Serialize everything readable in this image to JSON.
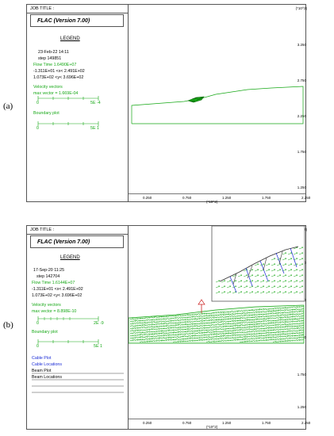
{
  "panel_a": {
    "label": "(a)",
    "job_title": "JOB TITLE :",
    "app_title": "FLAC (Version 7.00)",
    "legend_title": "LEGEND",
    "date": "23-Feb-22  14:11",
    "step": "step   149851",
    "flow_time": "Flow Time    1.6490E+07",
    "x_range": "-1.311E+01 <x<  2.491E+02",
    "y_range": "1.073E+02 <y<  3.696E+02",
    "velocity_label": "Velocity vectors",
    "max_vector": "max vector =    1.669E-04",
    "vel_scale_0": "0",
    "vel_scale_max": "5E -4",
    "boundary_label": "Boundary plot",
    "bnd_scale_0": "0",
    "bnd_scale_max": "5E  1",
    "y_units": "(*10^2)",
    "x_units": "(*10^2)",
    "y_ticks": [
      "3.250",
      "2.750",
      "2.250",
      "1.750",
      "1.250"
    ],
    "x_ticks": [
      "0.250",
      "0.750",
      "1.250",
      "1.750",
      "2.250"
    ]
  },
  "panel_b": {
    "label": "(b)",
    "job_title": "JOB TITLE :",
    "app_title": "FLAC (Version 7.00)",
    "legend_title": "LEGEND",
    "date": "17-Sep-20  11:25",
    "step": "step   142704",
    "flow_time": "Flow Time    1.6144E+07",
    "x_range": "-1.311E+01 <x<  2.491E+02",
    "y_range": "1.073E+02 <y<  3.696E+02",
    "velocity_label": "Velocity vectors",
    "max_vector": "max vector =    8.898E-10",
    "vel_scale_0": "0",
    "vel_scale_max": "2E -9",
    "boundary_label": "Boundary plot",
    "bnd_scale_0": "0",
    "bnd_scale_max": "5E  1",
    "cable_plot": "Cable Plot",
    "cable_locations": "Cable Locations",
    "beam_plot": "Beam Plot",
    "beam_locations": "Beam Locations",
    "y_units": "(*10^2)",
    "x_units": "(*10^2)",
    "y_ticks": [
      "3.250",
      "2.750",
      "2.250",
      "1.750",
      "1.250"
    ],
    "x_ticks": [
      "0.250",
      "0.750",
      "1.250",
      "1.750",
      "2.250"
    ]
  },
  "colors": {
    "green": "#16a816",
    "blue": "#1a2bd6",
    "red": "#cc2222",
    "frame": "#555555"
  }
}
